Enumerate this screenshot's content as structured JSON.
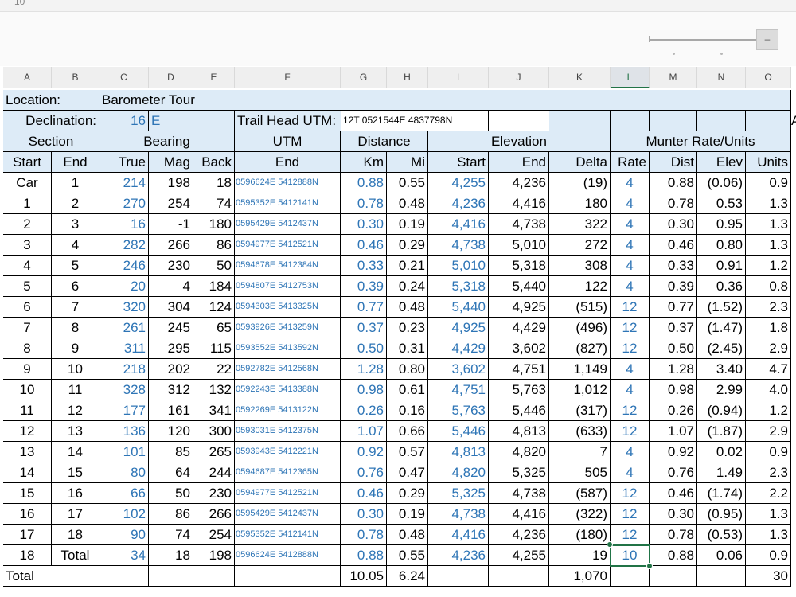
{
  "name_box": "10",
  "columns": [
    "A",
    "B",
    "C",
    "D",
    "E",
    "F",
    "G",
    "H",
    "I",
    "J",
    "K",
    "L",
    "M",
    "N",
    "O"
  ],
  "selected_column": "L",
  "slider_button": "–",
  "title_row": {
    "label": "Location:",
    "value": "Barometer Tour"
  },
  "decl_row": {
    "label": "Declination:",
    "value": "16",
    "dir": "E",
    "utm_label": "Trail Head UTM:",
    "utm_value": "12T 0521544E 4837798N",
    "edge": "A"
  },
  "group_headers": {
    "section": "Section",
    "bearing": "Bearing",
    "utm": "UTM",
    "distance": "Distance",
    "elevation": "Elevation",
    "munter": "Munter Rate/Units"
  },
  "sub_headers": [
    "Start",
    "End",
    "True",
    "Mag",
    "Back",
    "End",
    "Km",
    "Mi",
    "Start",
    "End",
    "Delta",
    "Rate",
    "Dist",
    "Elev",
    "Units"
  ],
  "rows": [
    [
      "Car",
      "1",
      "214",
      "198",
      "18",
      "0596624E 5412888N",
      "0.88",
      "0.55",
      "4,255",
      "4,236",
      "(19)",
      "4",
      "0.88",
      "(0.06)",
      "0.9"
    ],
    [
      "1",
      "2",
      "270",
      "254",
      "74",
      "0595352E 5412141N",
      "0.78",
      "0.48",
      "4,236",
      "4,416",
      "180",
      "4",
      "0.78",
      "0.53",
      "1.3"
    ],
    [
      "2",
      "3",
      "16",
      "-1",
      "180",
      "0595429E 5412437N",
      "0.30",
      "0.19",
      "4,416",
      "4,738",
      "322",
      "4",
      "0.30",
      "0.95",
      "1.3"
    ],
    [
      "3",
      "4",
      "282",
      "266",
      "86",
      "0594977E 5412521N",
      "0.46",
      "0.29",
      "4,738",
      "5,010",
      "272",
      "4",
      "0.46",
      "0.80",
      "1.3"
    ],
    [
      "4",
      "5",
      "246",
      "230",
      "50",
      "0594678E 5412384N",
      "0.33",
      "0.21",
      "5,010",
      "5,318",
      "308",
      "4",
      "0.33",
      "0.91",
      "1.2"
    ],
    [
      "5",
      "6",
      "20",
      "4",
      "184",
      "0594807E 5412753N",
      "0.39",
      "0.24",
      "5,318",
      "5,440",
      "122",
      "4",
      "0.39",
      "0.36",
      "0.8"
    ],
    [
      "6",
      "7",
      "320",
      "304",
      "124",
      "0594303E 5413325N",
      "0.77",
      "0.48",
      "5,440",
      "4,925",
      "(515)",
      "12",
      "0.77",
      "(1.52)",
      "2.3"
    ],
    [
      "7",
      "8",
      "261",
      "245",
      "65",
      "0593926E 5413259N",
      "0.37",
      "0.23",
      "4,925",
      "4,429",
      "(496)",
      "12",
      "0.37",
      "(1.47)",
      "1.8"
    ],
    [
      "8",
      "9",
      "311",
      "295",
      "115",
      "0593552E 5413592N",
      "0.50",
      "0.31",
      "4,429",
      "3,602",
      "(827)",
      "12",
      "0.50",
      "(2.45)",
      "2.9"
    ],
    [
      "9",
      "10",
      "218",
      "202",
      "22",
      "0592782E 5412568N",
      "1.28",
      "0.80",
      "3,602",
      "4,751",
      "1,149",
      "4",
      "1.28",
      "3.40",
      "4.7"
    ],
    [
      "10",
      "11",
      "328",
      "312",
      "132",
      "0592243E 5413388N",
      "0.98",
      "0.61",
      "4,751",
      "5,763",
      "1,012",
      "4",
      "0.98",
      "2.99",
      "4.0"
    ],
    [
      "11",
      "12",
      "177",
      "161",
      "341",
      "0592269E 5413122N",
      "0.26",
      "0.16",
      "5,763",
      "5,446",
      "(317)",
      "12",
      "0.26",
      "(0.94)",
      "1.2"
    ],
    [
      "12",
      "13",
      "136",
      "120",
      "300",
      "0593031E 5412375N",
      "1.07",
      "0.66",
      "5,446",
      "4,813",
      "(633)",
      "12",
      "1.07",
      "(1.87)",
      "2.9"
    ],
    [
      "13",
      "14",
      "101",
      "85",
      "265",
      "0593943E 5412221N",
      "0.92",
      "0.57",
      "4,813",
      "4,820",
      "7",
      "4",
      "0.92",
      "0.02",
      "0.9"
    ],
    [
      "14",
      "15",
      "80",
      "64",
      "244",
      "0594687E 5412365N",
      "0.76",
      "0.47",
      "4,820",
      "5,325",
      "505",
      "4",
      "0.76",
      "1.49",
      "2.3"
    ],
    [
      "15",
      "16",
      "66",
      "50",
      "230",
      "0594977E 5412521N",
      "0.46",
      "0.29",
      "5,325",
      "4,738",
      "(587)",
      "12",
      "0.46",
      "(1.74)",
      "2.2"
    ],
    [
      "16",
      "17",
      "102",
      "86",
      "266",
      "0595429E 5412437N",
      "0.30",
      "0.19",
      "4,738",
      "4,416",
      "(322)",
      "12",
      "0.30",
      "(0.95)",
      "1.3"
    ],
    [
      "17",
      "18",
      "90",
      "74",
      "254",
      "0595352E 5412141N",
      "0.78",
      "0.48",
      "4,416",
      "4,236",
      "(180)",
      "12",
      "0.78",
      "(0.53)",
      "1.3"
    ],
    [
      "18",
      "Total",
      "34",
      "18",
      "198",
      "0596624E 5412888N",
      "0.88",
      "0.55",
      "4,236",
      "4,255",
      "19",
      "10",
      "0.88",
      "0.06",
      "0.9"
    ]
  ],
  "total_row": {
    "label": "Total",
    "km": "10.05",
    "mi": "6.24",
    "delta": "1,070",
    "units": "30"
  },
  "colors": {
    "header_fill": "#ddebf7",
    "blue_text": "#2e75b6",
    "selection": "#217346"
  }
}
